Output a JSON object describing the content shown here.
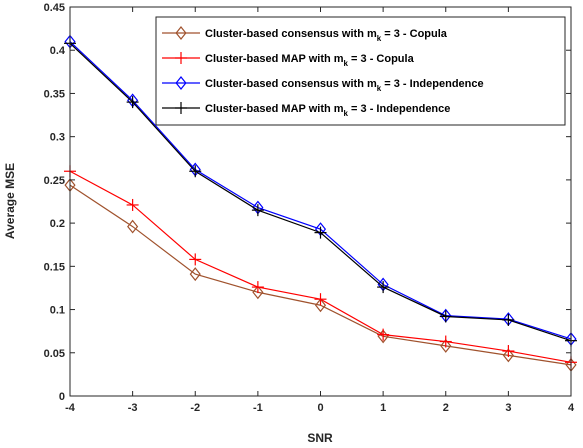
{
  "chart_data": {
    "type": "line",
    "title": "",
    "xlabel": "SNR",
    "ylabel": "Average MSE",
    "x": [
      -4,
      -3,
      -2,
      -1,
      0,
      1,
      2,
      3,
      4
    ],
    "xlim": [
      -4,
      4
    ],
    "ylim": [
      0,
      0.45
    ],
    "xticks": [
      "-4",
      "-3",
      "-2",
      "-1",
      "0",
      "1",
      "2",
      "3",
      "4"
    ],
    "yticks": [
      "0",
      "0.05",
      "0.1",
      "0.15",
      "0.2",
      "0.25",
      "0.3",
      "0.35",
      "0.4",
      "0.45"
    ],
    "grid": false,
    "legend_position": "top-right",
    "series": [
      {
        "name": "Cluster-based consensus with m_k = 3 - Copula",
        "legend": {
          "prefix": "Cluster-based consensus with m",
          "sub": "k",
          "suffix": " = 3 - Copula"
        },
        "color": "#a0522d",
        "marker": "diamond",
        "values": [
          0.244,
          0.196,
          0.141,
          0.12,
          0.105,
          0.069,
          0.058,
          0.047,
          0.036
        ]
      },
      {
        "name": "Cluster-based MAP with m_k = 3 - Copula",
        "legend": {
          "prefix": "Cluster-based MAP with m",
          "sub": "k",
          "suffix": " = 3 - Copula"
        },
        "color": "#ff0000",
        "marker": "plus",
        "values": [
          0.26,
          0.221,
          0.158,
          0.126,
          0.112,
          0.071,
          0.063,
          0.052,
          0.039
        ]
      },
      {
        "name": "Cluster-based consensus with m_k = 3 - Independence",
        "legend": {
          "prefix": "Cluster-based consensus with m",
          "sub": "k",
          "suffix": " = 3 - Independence"
        },
        "color": "#0000ff",
        "marker": "diamond",
        "values": [
          0.41,
          0.342,
          0.262,
          0.218,
          0.193,
          0.129,
          0.093,
          0.089,
          0.066
        ]
      },
      {
        "name": "Cluster-based MAP with m_k = 3 - Independence",
        "legend": {
          "prefix": "Cluster-based MAP with m",
          "sub": "k",
          "suffix": " = 3 - Independence"
        },
        "color": "#000000",
        "marker": "plus",
        "values": [
          0.408,
          0.34,
          0.26,
          0.215,
          0.189,
          0.126,
          0.092,
          0.088,
          0.064
        ]
      }
    ]
  }
}
